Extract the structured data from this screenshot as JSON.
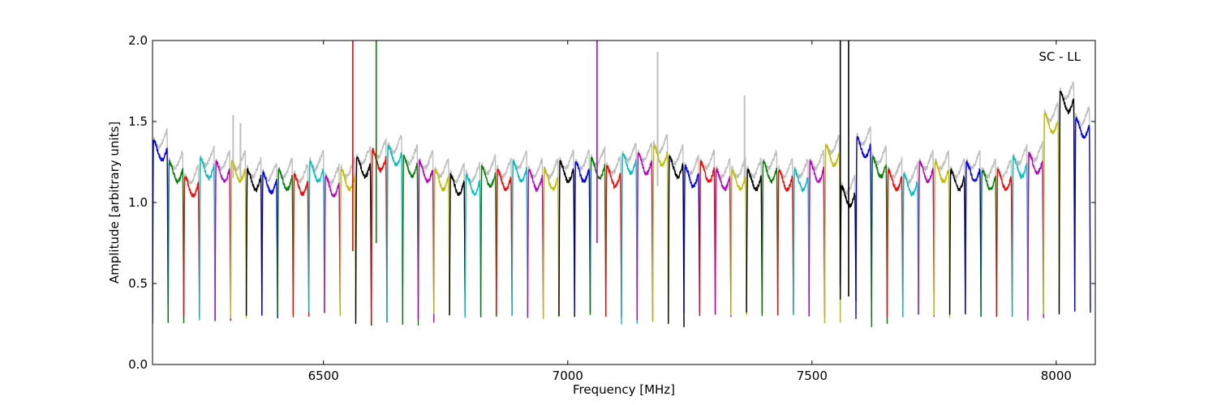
{
  "chart_data": {
    "type": "line",
    "title": "",
    "xlabel": "Frequency [MHz]",
    "ylabel": "Amplitude [arbitrary units]",
    "annotation": "SC - LL",
    "xlim": [
      6150,
      8080
    ],
    "ylim": [
      0.0,
      2.0
    ],
    "grid": false,
    "legend": "none",
    "x_ticks": [
      6500,
      7000,
      7500,
      8000
    ],
    "x_tick_labels": [
      "6500",
      "7000",
      "7500",
      "8000"
    ],
    "y_ticks": [
      0.0,
      0.5,
      1.0,
      1.5,
      2.0
    ],
    "y_tick_labels": [
      "0.0",
      "0.5",
      "1.0",
      "1.5",
      "2.0"
    ],
    "color_cycle": [
      "#0000ff",
      "#008000",
      "#ff0000",
      "#00bfbf",
      "#bf00bf",
      "#bfbf00",
      "#000000"
    ],
    "background_color": "#bfbfbf",
    "channel_width_mhz": 32,
    "series": [
      {
        "x0": 6150,
        "dip": 0.25,
        "level": 1.38,
        "color": "#0000ff"
      },
      {
        "x0": 6182,
        "dip": 0.26,
        "level": 1.25,
        "color": "#008000"
      },
      {
        "x0": 6214,
        "dip": 0.3,
        "level": 1.16,
        "color": "#ff0000"
      },
      {
        "x0": 6246,
        "dip": 0.27,
        "level": 1.27,
        "color": "#00bfbf"
      },
      {
        "x0": 6278,
        "dip": 0.28,
        "level": 1.25,
        "color": "#bf00bf"
      },
      {
        "x0": 6310,
        "dip": 0.29,
        "level": 1.25,
        "color": "#bfbf00"
      },
      {
        "x0": 6342,
        "dip": 0.3,
        "level": 1.2,
        "color": "#000000"
      },
      {
        "x0": 6374,
        "dip": 0.29,
        "level": 1.18,
        "color": "#0000ff"
      },
      {
        "x0": 6406,
        "dip": 0.3,
        "level": 1.2,
        "color": "#008000"
      },
      {
        "x0": 6438,
        "dip": 0.3,
        "level": 1.17,
        "color": "#ff0000"
      },
      {
        "x0": 6470,
        "dip": 0.31,
        "level": 1.25,
        "color": "#00bfbf"
      },
      {
        "x0": 6502,
        "dip": 0.31,
        "level": 1.16,
        "color": "#bf00bf"
      },
      {
        "x0": 6534,
        "dip": 0.3,
        "level": 1.2,
        "color": "#bfbf00"
      },
      {
        "x0": 6566,
        "dip": 0.24,
        "level": 1.28,
        "color": "#000000"
      },
      {
        "x0": 6598,
        "dip": 0.25,
        "level": 1.32,
        "color": "#ff0000"
      },
      {
        "x0": 6630,
        "dip": 0.26,
        "level": 1.35,
        "color": "#00bfbf"
      },
      {
        "x0": 6662,
        "dip": 0.25,
        "level": 1.28,
        "color": "#008000"
      },
      {
        "x0": 6694,
        "dip": 0.27,
        "level": 1.25,
        "color": "#bf00bf"
      },
      {
        "x0": 6726,
        "dip": 0.31,
        "level": 1.2,
        "color": "#bfbf00"
      },
      {
        "x0": 6758,
        "dip": 0.3,
        "level": 1.17,
        "color": "#000000"
      },
      {
        "x0": 6790,
        "dip": 0.29,
        "level": 1.17,
        "color": "#00bfbf"
      },
      {
        "x0": 6822,
        "dip": 0.3,
        "level": 1.22,
        "color": "#008000"
      },
      {
        "x0": 6854,
        "dip": 0.31,
        "level": 1.2,
        "color": "#ff0000"
      },
      {
        "x0": 6886,
        "dip": 0.3,
        "level": 1.25,
        "color": "#00bfbf"
      },
      {
        "x0": 6918,
        "dip": 0.3,
        "level": 1.2,
        "color": "#bf00bf"
      },
      {
        "x0": 6950,
        "dip": 0.29,
        "level": 1.2,
        "color": "#bfbf00"
      },
      {
        "x0": 6982,
        "dip": 0.3,
        "level": 1.25,
        "color": "#000000"
      },
      {
        "x0": 7014,
        "dip": 0.31,
        "level": 1.25,
        "color": "#0000ff"
      },
      {
        "x0": 7046,
        "dip": 0.3,
        "level": 1.27,
        "color": "#008000"
      },
      {
        "x0": 7078,
        "dip": 0.3,
        "level": 1.22,
        "color": "#ff0000"
      },
      {
        "x0": 7110,
        "dip": 0.25,
        "level": 1.3,
        "color": "#00bfbf"
      },
      {
        "x0": 7142,
        "dip": 0.28,
        "level": 1.3,
        "color": "#bf00bf"
      },
      {
        "x0": 7174,
        "dip": 0.26,
        "level": 1.35,
        "color": "#bfbf00"
      },
      {
        "x0": 7206,
        "dip": 0.24,
        "level": 1.28,
        "color": "#000000"
      },
      {
        "x0": 7238,
        "dip": 0.31,
        "level": 1.22,
        "color": "#0000ff"
      },
      {
        "x0": 7270,
        "dip": 0.3,
        "level": 1.25,
        "color": "#ff0000"
      },
      {
        "x0": 7302,
        "dip": 0.3,
        "level": 1.2,
        "color": "#bf00bf"
      },
      {
        "x0": 7334,
        "dip": 0.3,
        "level": 1.2,
        "color": "#bfbf00"
      },
      {
        "x0": 7366,
        "dip": 0.31,
        "level": 1.2,
        "color": "#000000"
      },
      {
        "x0": 7398,
        "dip": 0.3,
        "level": 1.25,
        "color": "#008000"
      },
      {
        "x0": 7430,
        "dip": 0.31,
        "level": 1.2,
        "color": "#ff0000"
      },
      {
        "x0": 7462,
        "dip": 0.3,
        "level": 1.2,
        "color": "#00bfbf"
      },
      {
        "x0": 7494,
        "dip": 0.29,
        "level": 1.25,
        "color": "#bf00bf"
      },
      {
        "x0": 7526,
        "dip": 0.26,
        "level": 1.35,
        "color": "#bfbf00"
      },
      {
        "x0": 7558,
        "dip": 0.4,
        "level": 1.1,
        "color": "#000000"
      },
      {
        "x0": 7590,
        "dip": 0.29,
        "level": 1.4,
        "color": "#0000ff"
      },
      {
        "x0": 7622,
        "dip": 0.24,
        "level": 1.28,
        "color": "#008000"
      },
      {
        "x0": 7654,
        "dip": 0.3,
        "level": 1.2,
        "color": "#ff0000"
      },
      {
        "x0": 7686,
        "dip": 0.3,
        "level": 1.17,
        "color": "#00bfbf"
      },
      {
        "x0": 7718,
        "dip": 0.3,
        "level": 1.25,
        "color": "#bf00bf"
      },
      {
        "x0": 7750,
        "dip": 0.3,
        "level": 1.25,
        "color": "#bfbf00"
      },
      {
        "x0": 7782,
        "dip": 0.31,
        "level": 1.2,
        "color": "#000000"
      },
      {
        "x0": 7814,
        "dip": 0.3,
        "level": 1.25,
        "color": "#0000ff"
      },
      {
        "x0": 7846,
        "dip": 0.3,
        "level": 1.2,
        "color": "#008000"
      },
      {
        "x0": 7878,
        "dip": 0.3,
        "level": 1.2,
        "color": "#ff0000"
      },
      {
        "x0": 7910,
        "dip": 0.3,
        "level": 1.28,
        "color": "#00bfbf"
      },
      {
        "x0": 7942,
        "dip": 0.28,
        "level": 1.3,
        "color": "#bf00bf"
      },
      {
        "x0": 7974,
        "dip": 0.32,
        "level": 1.55,
        "color": "#bfbf00"
      },
      {
        "x0": 8006,
        "dip": 0.32,
        "level": 1.68,
        "color": "#000000"
      },
      {
        "x0": 8038,
        "dip": 0.32,
        "level": 1.52,
        "color": "#0000ff"
      }
    ],
    "spikes": [
      {
        "x": 6560,
        "y": 2.0,
        "base": 0.7,
        "color": "#ff0000"
      },
      {
        "x": 6608,
        "y": 2.0,
        "base": 0.75,
        "color": "#008000"
      },
      {
        "x": 7060,
        "y": 2.0,
        "base": 0.75,
        "color": "#bf00bf"
      },
      {
        "x": 7558,
        "y": 2.0,
        "base": 0.48,
        "color": "#000000"
      },
      {
        "x": 7575,
        "y": 2.0,
        "base": 0.42,
        "color": "#000000"
      },
      {
        "x": 6315,
        "y": 1.54,
        "base": 1.15,
        "color": "#bfbfbf"
      },
      {
        "x": 6330,
        "y": 1.49,
        "base": 1.15,
        "color": "#bfbfbf"
      },
      {
        "x": 7184,
        "y": 1.93,
        "base": 1.1,
        "color": "#bfbfbf"
      },
      {
        "x": 7362,
        "y": 1.66,
        "base": 1.12,
        "color": "#bfbfbf"
      }
    ]
  }
}
